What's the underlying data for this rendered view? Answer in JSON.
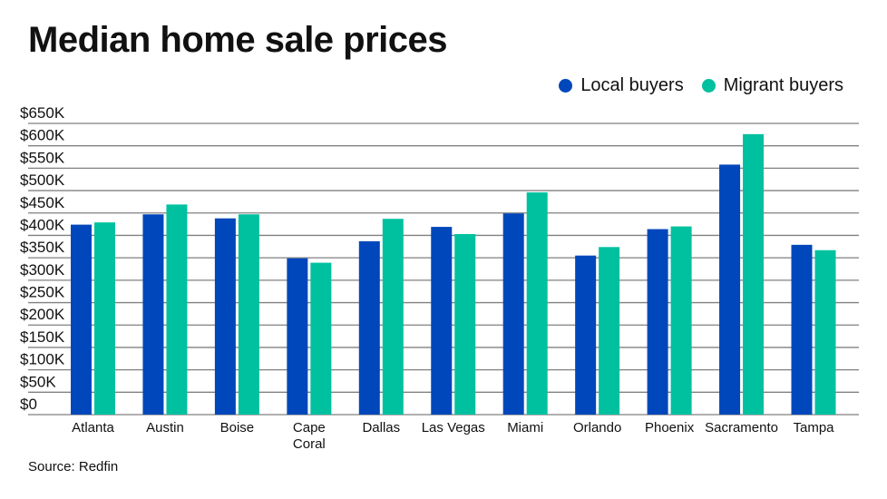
{
  "chart_data": {
    "type": "bar",
    "title": "Median home sale prices",
    "categories": [
      "Atlanta",
      "Austin",
      "Boise",
      "Cape Coral",
      "Dallas",
      "Las Vegas",
      "Miami",
      "Orlando",
      "Phoenix",
      "Sacramento",
      "Tampa"
    ],
    "series": [
      {
        "name": "Local buyers",
        "color": "#0047bb",
        "values": [
          424,
          447,
          438,
          349,
          387,
          419,
          449,
          355,
          414,
          558,
          379
        ]
      },
      {
        "name": "Migrant buyers",
        "color": "#00c19f",
        "values": [
          429,
          469,
          447,
          339,
          437,
          403,
          496,
          374,
          420,
          626,
          367
        ]
      }
    ],
    "y_unit": "thousands of USD",
    "ylim": [
      0,
      650
    ],
    "yticks": [
      0,
      50,
      100,
      150,
      200,
      250,
      300,
      350,
      400,
      450,
      500,
      550,
      600,
      650
    ],
    "ytick_labels": [
      "$0",
      "$50K",
      "$100K",
      "$150K",
      "$200K",
      "$250K",
      "$300K",
      "$350K",
      "$400K",
      "$450K",
      "$500K",
      "$550K",
      "$600K",
      "$650K"
    ],
    "grid": true,
    "legend_position": "top-right",
    "source": "Source: Redfin"
  }
}
